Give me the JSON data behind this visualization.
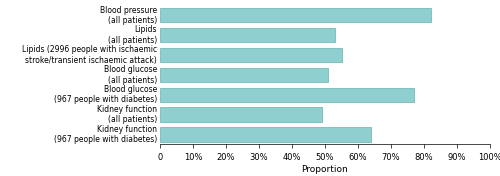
{
  "categories": [
    "Kidney function\n(967 people with diabetes)",
    "Kidney function\n(all patients)",
    "Blood glucose\n(967 people with diabetes)",
    "Blood glucose\n(all patients)",
    "Lipids (2996 people with ischaemic\nstroke/transient ischaemic attack)",
    "Lipids\n(all patients)",
    "Blood pressure\n(all patients)"
  ],
  "values": [
    0.64,
    0.49,
    0.77,
    0.51,
    0.55,
    0.53,
    0.82
  ],
  "bar_color": "#8ECFCF",
  "bar_edge_color": "#7ABABA",
  "xlim": [
    0,
    1.0
  ],
  "xticks": [
    0,
    0.1,
    0.2,
    0.3,
    0.4,
    0.5,
    0.6,
    0.7,
    0.8,
    0.9,
    1.0
  ],
  "xlabel": "Proportion",
  "background_color": "#ffffff",
  "bar_height": 0.72,
  "label_fontsize": 5.5,
  "xlabel_fontsize": 6.5,
  "tick_fontsize": 6.0
}
